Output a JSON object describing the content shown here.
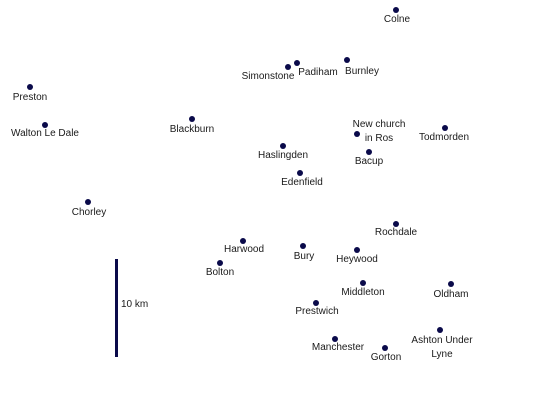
{
  "map": {
    "scale_label": "10 km",
    "marker_color": "#0a0a4a",
    "marker_icon": "town-dot-icon",
    "towns": [
      {
        "id": "colne",
        "lines": [
          "Colne"
        ]
      },
      {
        "id": "simonstone",
        "lines": [
          "Simonstone"
        ]
      },
      {
        "id": "padiham",
        "lines": [
          "Padiham"
        ]
      },
      {
        "id": "burnley",
        "lines": [
          "Burnley"
        ]
      },
      {
        "id": "preston",
        "lines": [
          "Preston"
        ]
      },
      {
        "id": "walton-le-dale",
        "lines": [
          "Walton Le Dale"
        ]
      },
      {
        "id": "blackburn",
        "lines": [
          "Blackburn"
        ]
      },
      {
        "id": "new-church-in-ros",
        "lines": [
          "New church",
          "in Ros"
        ]
      },
      {
        "id": "todmorden",
        "lines": [
          "Todmorden"
        ]
      },
      {
        "id": "haslingden",
        "lines": [
          "Haslingden"
        ]
      },
      {
        "id": "bacup",
        "lines": [
          "Bacup"
        ]
      },
      {
        "id": "edenfield",
        "lines": [
          "Edenfield"
        ]
      },
      {
        "id": "chorley",
        "lines": [
          "Chorley"
        ]
      },
      {
        "id": "rochdale",
        "lines": [
          "Rochdale"
        ]
      },
      {
        "id": "harwood",
        "lines": [
          "Harwood"
        ]
      },
      {
        "id": "bury",
        "lines": [
          "Bury"
        ]
      },
      {
        "id": "heywood",
        "lines": [
          "Heywood"
        ]
      },
      {
        "id": "bolton",
        "lines": [
          "Bolton"
        ]
      },
      {
        "id": "middleton",
        "lines": [
          "Middleton"
        ]
      },
      {
        "id": "oldham",
        "lines": [
          "Oldham"
        ]
      },
      {
        "id": "prestwich",
        "lines": [
          "Prestwich"
        ]
      },
      {
        "id": "ashton-under-lyne",
        "lines": [
          "Ashton Under",
          "Lyne"
        ]
      },
      {
        "id": "manchester",
        "lines": [
          "Manchester"
        ]
      },
      {
        "id": "gorton",
        "lines": [
          "Gorton"
        ]
      }
    ]
  }
}
